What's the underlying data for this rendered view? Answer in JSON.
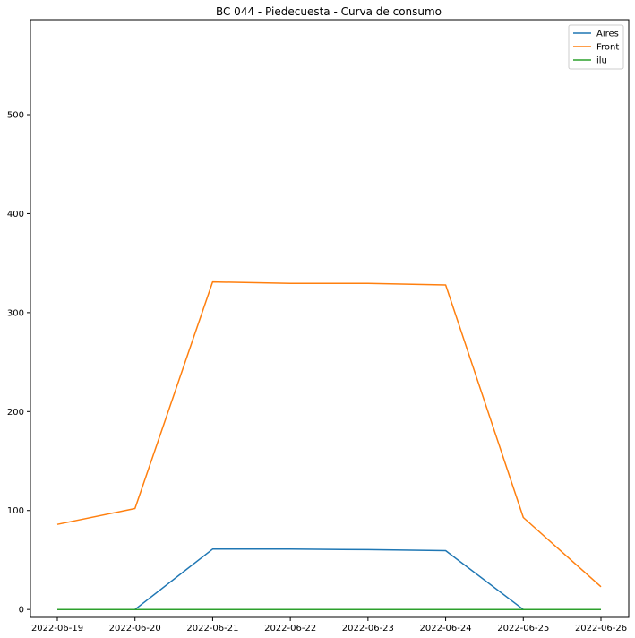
{
  "chart_data": {
    "type": "line",
    "title": "BC 044 - Piedecuesta - Curva de consumo",
    "xlabel": "",
    "ylabel": "",
    "x": [
      "2022-06-19",
      "2022-06-20",
      "2022-06-21",
      "2022-06-22",
      "2022-06-23",
      "2022-06-24",
      "2022-06-25",
      "2022-06-26"
    ],
    "ylim": [
      -8,
      596
    ],
    "yticks": [
      0,
      100,
      200,
      300,
      400,
      500
    ],
    "grid": false,
    "legend_position": "top-right",
    "series": [
      {
        "name": "Aires",
        "color": "#1f77b4",
        "values": [
          0,
          0,
          61,
          61,
          60.5,
          59.5,
          0,
          0
        ]
      },
      {
        "name": "Front",
        "color": "#ff7f0e",
        "values": [
          86,
          102,
          331,
          329.5,
          329.5,
          328,
          93,
          23
        ]
      },
      {
        "name": "ilu",
        "color": "#2ca02c",
        "values": [
          0,
          0,
          0,
          0,
          0,
          0,
          0,
          0
        ]
      }
    ]
  }
}
